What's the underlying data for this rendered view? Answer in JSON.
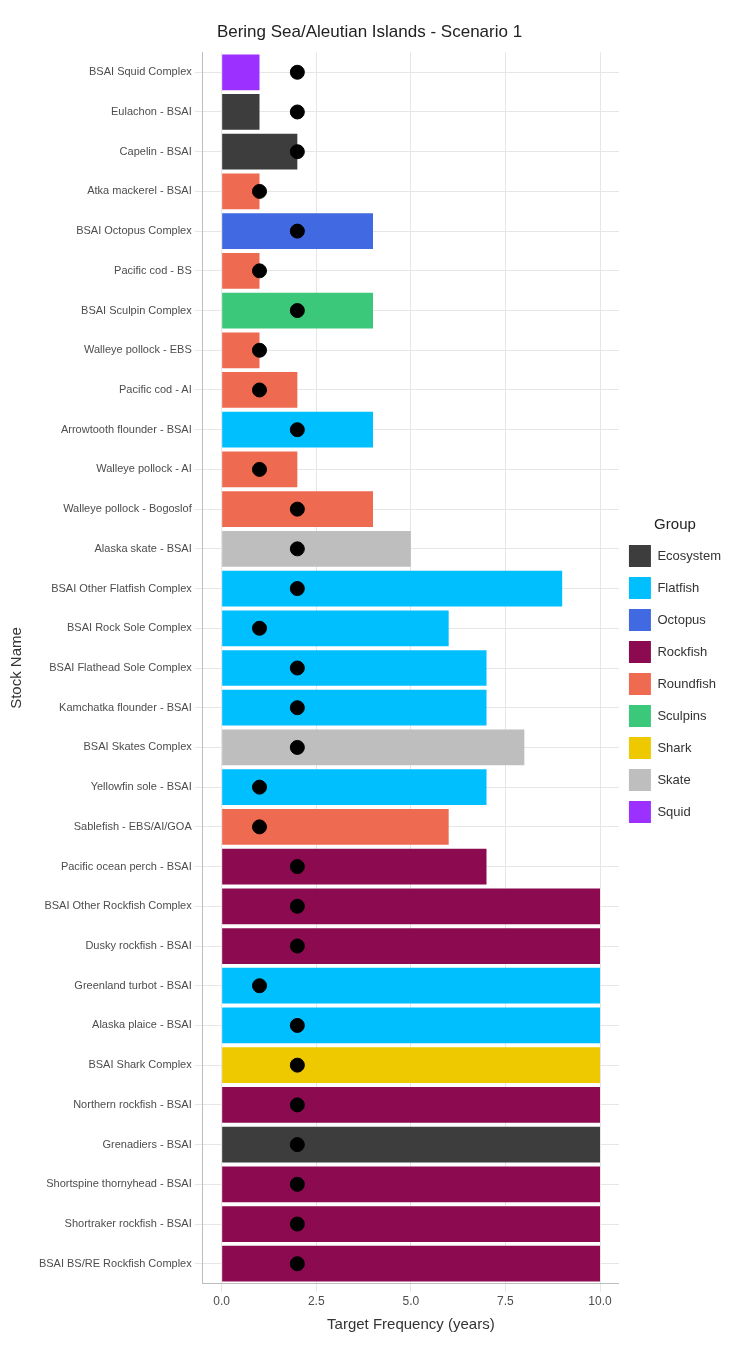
{
  "chart_data": {
    "type": "bar",
    "orientation": "horizontal",
    "title": "Bering Sea/Aleutian Islands - Scenario 1",
    "xlabel": "Target Frequency (years)",
    "ylabel": "Stock Name",
    "legend_title": "Group",
    "legend": "right",
    "grid": true,
    "categories": [
      "BSAI Squid Complex",
      "Eulachon - BSAI",
      "Capelin - BSAI",
      "Atka mackerel - BSAI",
      "BSAI Octopus Complex",
      "Pacific cod - BS",
      "BSAI Sculpin Complex",
      "Walleye pollock - EBS",
      "Pacific cod - AI",
      "Arrowtooth flounder - BSAI",
      "Walleye pollock - AI",
      "Walleye pollock - Bogoslof",
      "Alaska skate - BSAI",
      "BSAI Other Flatfish Complex",
      "BSAI Rock Sole Complex",
      "BSAI Flathead Sole Complex",
      "Kamchatka flounder - BSAI",
      "BSAI Skates Complex",
      "Yellowfin sole - BSAI",
      "Sablefish - EBS/AI/GOA",
      "Pacific ocean perch - BSAI",
      "BSAI Other Rockfish Complex",
      "Dusky rockfish - BSAI",
      "Greenland turbot - BSAI",
      "Alaska plaice - BSAI",
      "BSAI Shark Complex",
      "Northern rockfish - BSAI",
      "Grenadiers - BSAI",
      "Shortspine thornyhead - BSAI",
      "Shortraker rockfish - BSAI",
      "BSAI BS/RE Rockfish Complex"
    ],
    "xlim": [
      -0.5,
      10.5
    ],
    "xticks": [
      {
        "value": 0,
        "label": "0.0"
      },
      2.5,
      {
        "value": 5,
        "label": "5.0"
      },
      7.5,
      {
        "value": 10,
        "label": "10.0"
      }
    ],
    "series": [
      {
        "name": "Ecosystem",
        "color": "#3d3d3d",
        "values": [
          null,
          1,
          2,
          null,
          null,
          null,
          null,
          null,
          null,
          null,
          null,
          null,
          null,
          null,
          null,
          null,
          null,
          null,
          null,
          null,
          null,
          null,
          null,
          null,
          null,
          null,
          null,
          10,
          null,
          null,
          null
        ]
      },
      {
        "name": "Flatfish",
        "color": "#00bfff",
        "values": [
          null,
          null,
          null,
          null,
          null,
          null,
          null,
          null,
          null,
          4,
          null,
          null,
          null,
          9,
          6,
          7,
          7,
          null,
          7,
          null,
          null,
          null,
          null,
          10,
          10,
          null,
          null,
          null,
          null,
          null,
          null
        ]
      },
      {
        "name": "Octopus",
        "color": "#4169e1",
        "values": [
          null,
          null,
          null,
          null,
          4,
          null,
          null,
          null,
          null,
          null,
          null,
          null,
          null,
          null,
          null,
          null,
          null,
          null,
          null,
          null,
          null,
          null,
          null,
          null,
          null,
          null,
          null,
          null,
          null,
          null,
          null
        ]
      },
      {
        "name": "Rockfish",
        "color": "#8b0a50",
        "values": [
          null,
          null,
          null,
          null,
          null,
          null,
          null,
          null,
          null,
          null,
          null,
          null,
          null,
          null,
          null,
          null,
          null,
          null,
          null,
          null,
          7,
          10,
          10,
          null,
          null,
          null,
          10,
          null,
          10,
          10,
          10
        ]
      },
      {
        "name": "Roundfish",
        "color": "#ee6a50",
        "values": [
          null,
          null,
          null,
          1,
          null,
          1,
          null,
          1,
          2,
          null,
          2,
          4,
          null,
          null,
          null,
          null,
          null,
          null,
          null,
          6,
          null,
          null,
          null,
          null,
          null,
          null,
          null,
          null,
          null,
          null,
          null
        ]
      },
      {
        "name": "Sculpins",
        "color": "#3cc87a",
        "values": [
          null,
          null,
          null,
          null,
          null,
          null,
          4,
          null,
          null,
          null,
          null,
          null,
          null,
          null,
          null,
          null,
          null,
          null,
          null,
          null,
          null,
          null,
          null,
          null,
          null,
          null,
          null,
          null,
          null,
          null,
          null
        ]
      },
      {
        "name": "Shark",
        "color": "#eec900",
        "values": [
          null,
          null,
          null,
          null,
          null,
          null,
          null,
          null,
          null,
          null,
          null,
          null,
          null,
          null,
          null,
          null,
          null,
          null,
          null,
          null,
          null,
          null,
          null,
          null,
          null,
          10,
          null,
          null,
          null,
          null,
          null
        ]
      },
      {
        "name": "Skate",
        "color": "#bebebe",
        "values": [
          null,
          null,
          null,
          null,
          null,
          null,
          null,
          null,
          null,
          null,
          null,
          null,
          5,
          null,
          null,
          null,
          null,
          8,
          null,
          null,
          null,
          null,
          null,
          null,
          null,
          null,
          null,
          null,
          null,
          null,
          null
        ]
      },
      {
        "name": "Squid",
        "color": "#9b30ff",
        "values": [
          1,
          null,
          null,
          null,
          null,
          null,
          null,
          null,
          null,
          null,
          null,
          null,
          null,
          null,
          null,
          null,
          null,
          null,
          null,
          null,
          null,
          null,
          null,
          null,
          null,
          null,
          null,
          null,
          null,
          null,
          null
        ]
      },
      {
        "type": "scatter",
        "marker": "circle",
        "color": "#000000",
        "values": [
          2,
          2,
          2,
          1,
          2,
          1,
          2,
          1,
          1,
          2,
          1,
          2,
          2,
          2,
          1,
          2,
          2,
          2,
          1,
          1,
          2,
          2,
          2,
          1,
          2,
          2,
          2,
          2,
          2,
          2,
          2
        ]
      }
    ]
  }
}
